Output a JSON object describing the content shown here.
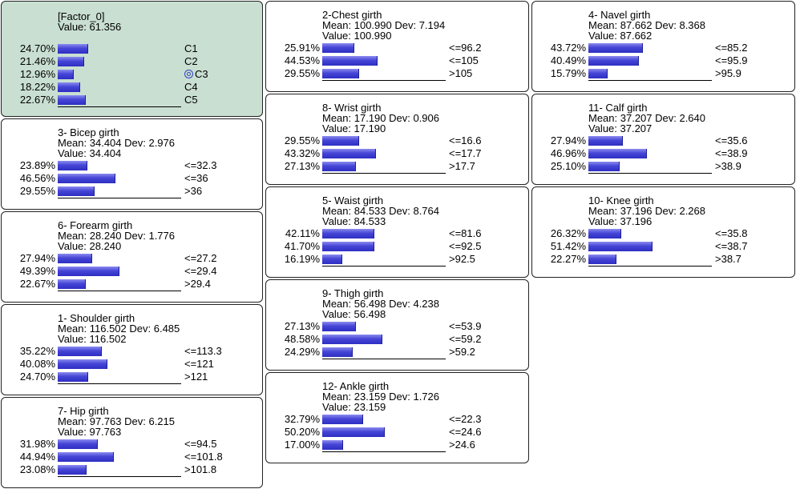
{
  "factor": {
    "title": "[Factor_0]",
    "value_line": "Value: 61.356",
    "rows": [
      {
        "pct": "24.70%",
        "label": "C1",
        "value": 24.7
      },
      {
        "pct": "21.46%",
        "label": "C2",
        "value": 21.46
      },
      {
        "pct": "12.96%",
        "label": "C3",
        "value": 12.96,
        "selected": true
      },
      {
        "pct": "18.22%",
        "label": "C4",
        "value": 18.22
      },
      {
        "pct": "22.67%",
        "label": "C5",
        "value": 22.67
      }
    ]
  },
  "nodes": {
    "bicep": {
      "title": "3- Bicep girth",
      "stats": "Mean: 34.404 Dev: 2.976",
      "value_line": "Value: 34.404",
      "rows": [
        {
          "pct": "23.89%",
          "label": "<=32.3",
          "value": 23.89
        },
        {
          "pct": "46.56%",
          "label": "<=36",
          "value": 46.56
        },
        {
          "pct": "29.55%",
          "label": ">36",
          "value": 29.55
        }
      ]
    },
    "forearm": {
      "title": "6- Forearm girth",
      "stats": "Mean: 28.240 Dev: 1.776",
      "value_line": "Value: 28.240",
      "rows": [
        {
          "pct": "27.94%",
          "label": "<=27.2",
          "value": 27.94
        },
        {
          "pct": "49.39%",
          "label": "<=29.4",
          "value": 49.39
        },
        {
          "pct": "22.67%",
          "label": ">29.4",
          "value": 22.67
        }
      ]
    },
    "shoulder": {
      "title": "1- Shoulder girth",
      "stats": "Mean: 116.502 Dev: 6.485",
      "value_line": "Value: 116.502",
      "rows": [
        {
          "pct": "35.22%",
          "label": "<=113.3",
          "value": 35.22
        },
        {
          "pct": "40.08%",
          "label": "<=121",
          "value": 40.08
        },
        {
          "pct": "24.70%",
          "label": ">121",
          "value": 24.7
        }
      ]
    },
    "hip": {
      "title": "7- Hip girth",
      "stats": "Mean: 97.763 Dev: 6.215",
      "value_line": "Value: 97.763",
      "rows": [
        {
          "pct": "31.98%",
          "label": "<=94.5",
          "value": 31.98
        },
        {
          "pct": "44.94%",
          "label": "<=101.8",
          "value": 44.94
        },
        {
          "pct": "23.08%",
          "label": ">101.8",
          "value": 23.08
        }
      ]
    },
    "chest": {
      "title": "2-Chest girth",
      "stats": "Mean: 100.990 Dev: 7.194",
      "value_line": "Value: 100.990",
      "rows": [
        {
          "pct": "25.91%",
          "label": "<=96.2",
          "value": 25.91
        },
        {
          "pct": "44.53%",
          "label": "<=105",
          "value": 44.53
        },
        {
          "pct": "29.55%",
          "label": ">105",
          "value": 29.55
        }
      ]
    },
    "wrist": {
      "title": "8- Wrist girth",
      "stats": "Mean: 17.190 Dev: 0.906",
      "value_line": "Value: 17.190",
      "rows": [
        {
          "pct": "29.55%",
          "label": "<=16.6",
          "value": 29.55
        },
        {
          "pct": "43.32%",
          "label": "<=17.7",
          "value": 43.32
        },
        {
          "pct": "27.13%",
          "label": ">17.7",
          "value": 27.13
        }
      ]
    },
    "waist": {
      "title": "5- Waist girth",
      "stats": "Mean: 84.533 Dev: 8.764",
      "value_line": "Value: 84.533",
      "rows": [
        {
          "pct": "42.11%",
          "label": "<=81.6",
          "value": 42.11
        },
        {
          "pct": "41.70%",
          "label": "<=92.5",
          "value": 41.7
        },
        {
          "pct": "16.19%",
          "label": ">92.5",
          "value": 16.19
        }
      ]
    },
    "thigh": {
      "title": "9- Thigh girth",
      "stats": "Mean: 56.498 Dev: 4.238",
      "value_line": "Value: 56.498",
      "rows": [
        {
          "pct": "27.13%",
          "label": "<=53.9",
          "value": 27.13
        },
        {
          "pct": "48.58%",
          "label": "<=59.2",
          "value": 48.58
        },
        {
          "pct": "24.29%",
          "label": ">59.2",
          "value": 24.29
        }
      ]
    },
    "ankle": {
      "title": "12- Ankle girth",
      "stats": "Mean: 23.159 Dev: 1.726",
      "value_line": "Value: 23.159",
      "rows": [
        {
          "pct": "32.79%",
          "label": "<=22.3",
          "value": 32.79
        },
        {
          "pct": "50.20%",
          "label": "<=24.6",
          "value": 50.2
        },
        {
          "pct": "17.00%",
          "label": ">24.6",
          "value": 17.0
        }
      ]
    },
    "navel": {
      "title": "4- Navel girth",
      "stats": "Mean: 87.662 Dev: 8.368",
      "value_line": "Value: 87.662",
      "rows": [
        {
          "pct": "43.72%",
          "label": "<=85.2",
          "value": 43.72
        },
        {
          "pct": "40.49%",
          "label": "<=95.9",
          "value": 40.49
        },
        {
          "pct": "15.79%",
          "label": ">95.9",
          "value": 15.79
        }
      ]
    },
    "calf": {
      "title": "11- Calf girth",
      "stats": "Mean: 37.207 Dev: 2.640",
      "value_line": "Value: 37.207",
      "rows": [
        {
          "pct": "27.94%",
          "label": "<=35.6",
          "value": 27.94
        },
        {
          "pct": "46.96%",
          "label": "<=38.9",
          "value": 46.96
        },
        {
          "pct": "25.10%",
          "label": ">38.9",
          "value": 25.1
        }
      ]
    },
    "knee": {
      "title": "10- Knee girth",
      "stats": "Mean: 37.196 Dev: 2.268",
      "value_line": "Value: 37.196",
      "rows": [
        {
          "pct": "26.32%",
          "label": "<=35.8",
          "value": 26.32
        },
        {
          "pct": "51.42%",
          "label": "<=38.7",
          "value": 51.42
        },
        {
          "pct": "22.27%",
          "label": ">38.7",
          "value": 22.27
        }
      ]
    }
  }
}
